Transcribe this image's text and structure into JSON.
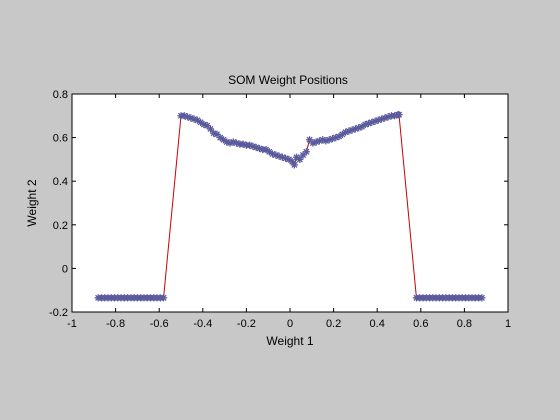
{
  "chart_data": {
    "type": "line",
    "title": "SOM Weight Positions",
    "xlabel": "Weight 1",
    "ylabel": "Weight 2",
    "xlim": [
      -1,
      1
    ],
    "ylim": [
      -0.2,
      0.8
    ],
    "xticks": [
      -1,
      -0.8,
      -0.6,
      -0.4,
      -0.2,
      0,
      0.2,
      0.4,
      0.6,
      0.8,
      1
    ],
    "xtick_labels": [
      "-1",
      "-0.8",
      "-0.6",
      "-0.4",
      "-0.2",
      "0",
      "0.2",
      "0.4",
      "0.6",
      "0.8",
      "1"
    ],
    "yticks": [
      -0.2,
      0,
      0.2,
      0.4,
      0.6,
      0.8
    ],
    "ytick_labels": [
      "-0.2",
      "0",
      "0.2",
      "0.4",
      "0.6",
      "0.8"
    ],
    "grid": false,
    "line_color": "#cc0000",
    "marker_color": "#5a5a9c",
    "marker": "asterisk",
    "series": [
      {
        "x": [
          -0.88,
          -0.865,
          -0.85,
          -0.835,
          -0.82,
          -0.805,
          -0.79,
          -0.775,
          -0.76,
          -0.745,
          -0.73,
          -0.715,
          -0.7,
          -0.685,
          -0.67,
          -0.655,
          -0.64,
          -0.625,
          -0.61,
          -0.595,
          -0.58,
          -0.5,
          -0.485,
          -0.47,
          -0.455,
          -0.44,
          -0.425,
          -0.41,
          -0.395,
          -0.38,
          -0.365,
          -0.35,
          -0.335,
          -0.32,
          -0.305,
          -0.29,
          -0.275,
          -0.26,
          -0.245,
          -0.23,
          -0.215,
          -0.2,
          -0.185,
          -0.17,
          -0.155,
          -0.14,
          -0.125,
          -0.11,
          -0.095,
          -0.08,
          -0.065,
          -0.05,
          -0.035,
          -0.02,
          -0.005,
          0.01,
          0.02,
          0.03,
          0.045,
          0.06,
          0.075,
          0.09,
          0.105,
          0.12,
          0.135,
          0.15,
          0.165,
          0.18,
          0.195,
          0.21,
          0.225,
          0.24,
          0.255,
          0.27,
          0.285,
          0.3,
          0.315,
          0.33,
          0.345,
          0.36,
          0.375,
          0.39,
          0.405,
          0.42,
          0.435,
          0.45,
          0.465,
          0.48,
          0.495,
          0.5,
          0.58,
          0.595,
          0.61,
          0.625,
          0.64,
          0.655,
          0.67,
          0.685,
          0.7,
          0.715,
          0.73,
          0.745,
          0.76,
          0.775,
          0.79,
          0.805,
          0.82,
          0.835,
          0.85,
          0.865,
          0.88
        ],
        "y": [
          -0.135,
          -0.135,
          -0.135,
          -0.135,
          -0.135,
          -0.135,
          -0.135,
          -0.135,
          -0.135,
          -0.135,
          -0.135,
          -0.135,
          -0.135,
          -0.135,
          -0.135,
          -0.135,
          -0.135,
          -0.135,
          -0.135,
          -0.135,
          -0.135,
          0.7,
          0.7,
          0.695,
          0.69,
          0.685,
          0.68,
          0.67,
          0.66,
          0.655,
          0.64,
          0.62,
          0.615,
          0.6,
          0.59,
          0.58,
          0.575,
          0.58,
          0.575,
          0.57,
          0.57,
          0.565,
          0.565,
          0.56,
          0.555,
          0.55,
          0.545,
          0.545,
          0.535,
          0.525,
          0.52,
          0.515,
          0.51,
          0.505,
          0.5,
          0.49,
          0.475,
          0.51,
          0.5,
          0.52,
          0.535,
          0.59,
          0.575,
          0.58,
          0.585,
          0.59,
          0.585,
          0.59,
          0.595,
          0.6,
          0.605,
          0.615,
          0.625,
          0.63,
          0.635,
          0.64,
          0.645,
          0.65,
          0.66,
          0.665,
          0.67,
          0.675,
          0.68,
          0.685,
          0.69,
          0.695,
          0.7,
          0.7,
          0.705,
          0.705,
          -0.135,
          -0.135,
          -0.135,
          -0.135,
          -0.135,
          -0.135,
          -0.135,
          -0.135,
          -0.135,
          -0.135,
          -0.135,
          -0.135,
          -0.135,
          -0.135,
          -0.135,
          -0.135,
          -0.135,
          -0.135,
          -0.135,
          -0.135,
          -0.135
        ]
      }
    ]
  }
}
